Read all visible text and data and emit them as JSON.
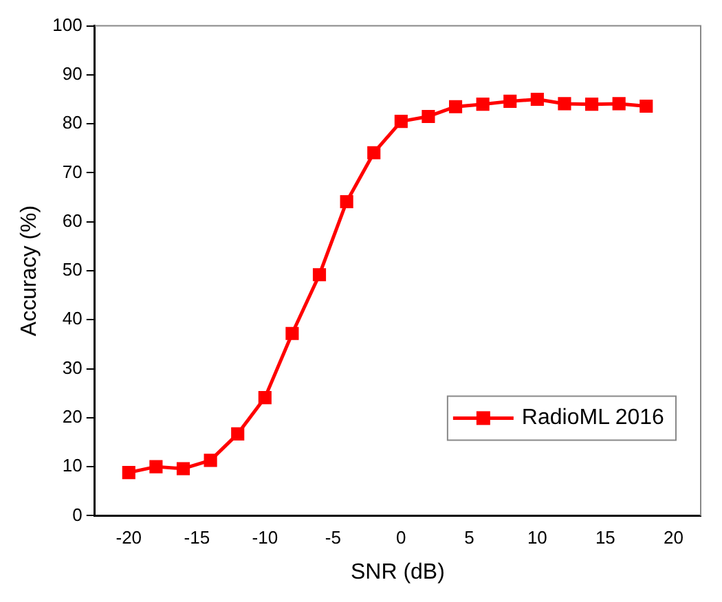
{
  "chart_data": {
    "type": "line",
    "xlabel": "SNR (dB)",
    "ylabel": "Accuracy (%)",
    "x": [
      -20,
      -18,
      -16,
      -14,
      -12,
      -10,
      -8,
      -6,
      -4,
      -2,
      0,
      2,
      4,
      6,
      8,
      10,
      12,
      14,
      16,
      18
    ],
    "series": [
      {
        "name": "RadioML 2016",
        "color": "#ff0000",
        "values": [
          8.8,
          10,
          9.6,
          11.3,
          16.7,
          24.1,
          37.2,
          49.2,
          64.1,
          74.1,
          80.5,
          81.5,
          83.5,
          84,
          84.6,
          85,
          84.1,
          84,
          84.1,
          83.6
        ]
      }
    ],
    "xlim": [
      -22.5,
      22
    ],
    "xticks": [
      -20,
      -15,
      -10,
      -5,
      0,
      5,
      10,
      15,
      20
    ],
    "ylim": [
      0,
      100
    ],
    "yticks": [
      0,
      10,
      20,
      30,
      40,
      50,
      60,
      70,
      80,
      90,
      100
    ],
    "grid": false,
    "legend": "bottom right",
    "marker": "square",
    "line_style": "solid"
  }
}
